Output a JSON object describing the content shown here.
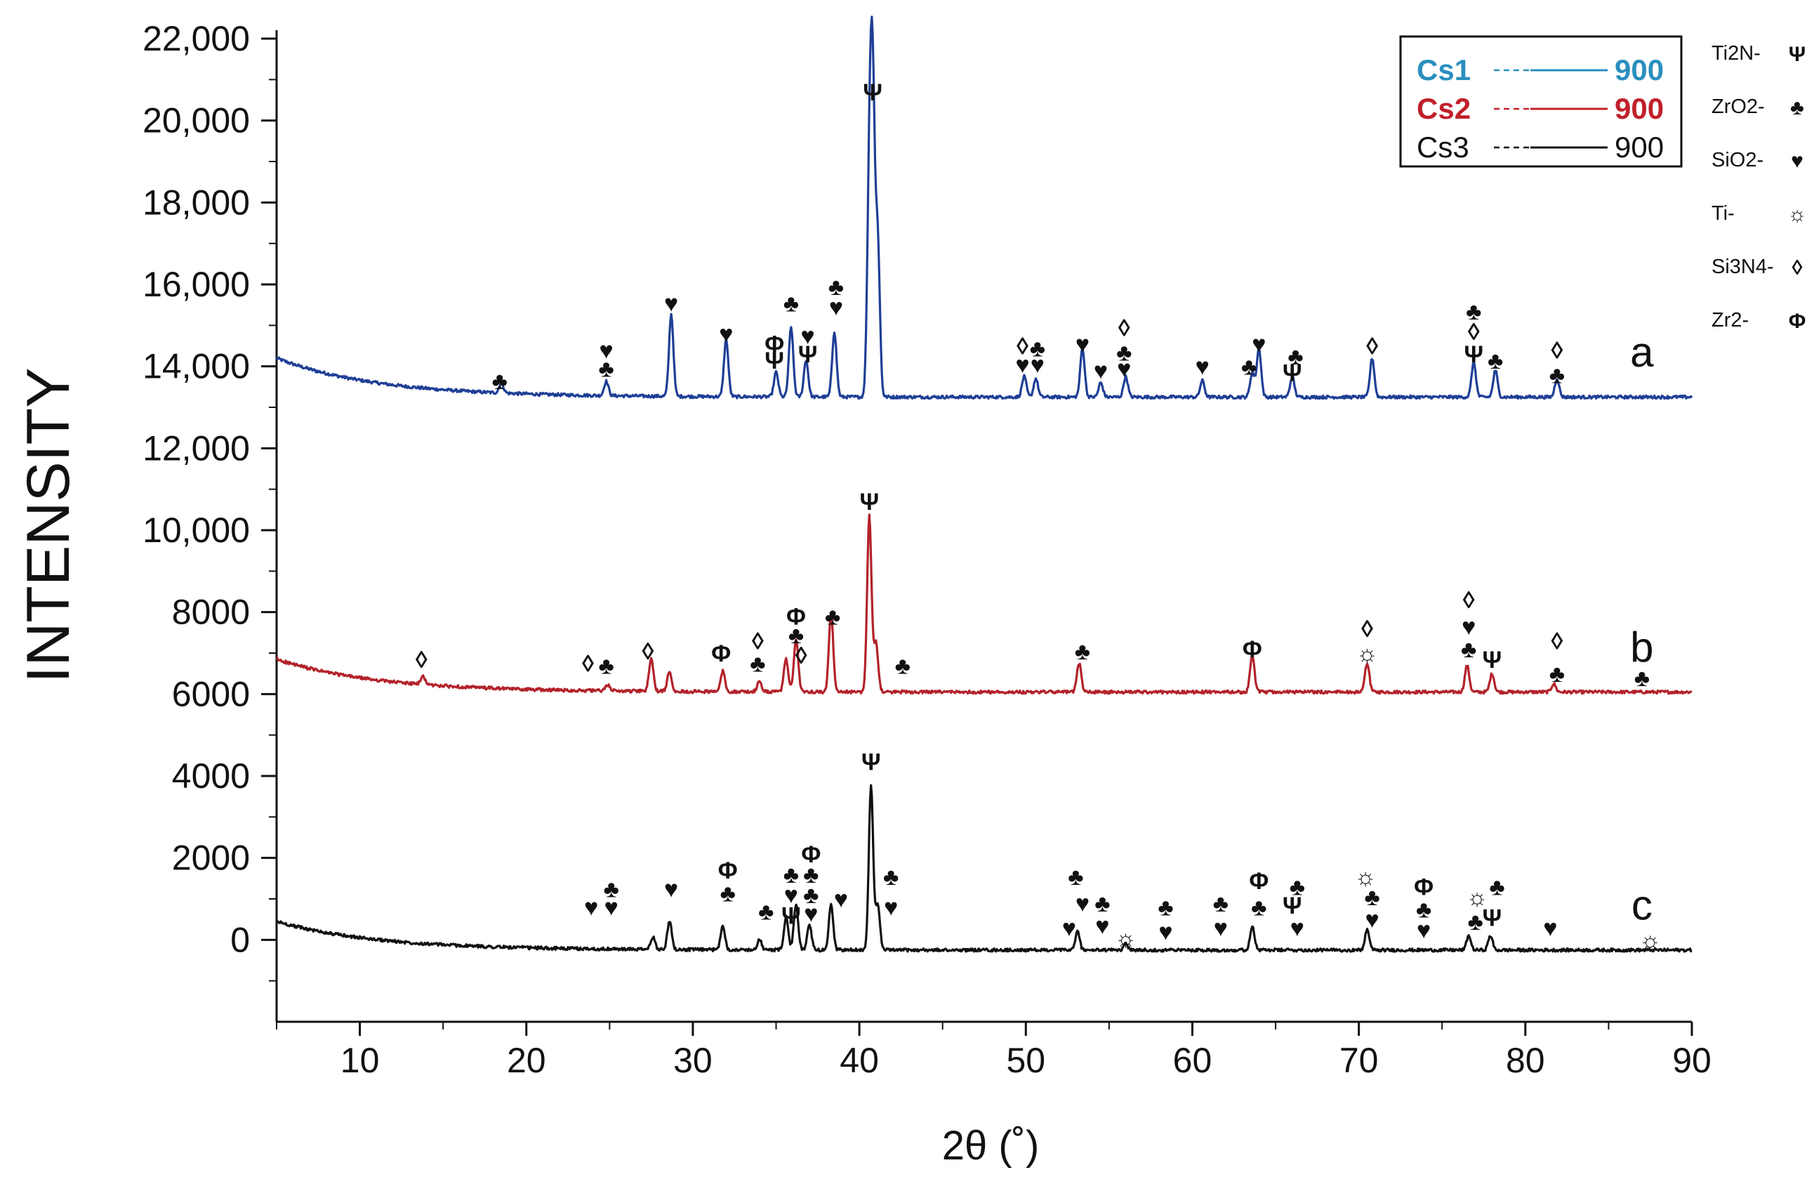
{
  "chart_data": {
    "type": "line",
    "xlabel": "2θ (˚)",
    "ylabel": "INTENSITY",
    "xlim": [
      5,
      90
    ],
    "ylim": [
      -2000,
      22000
    ],
    "x_ticks": [
      10,
      20,
      30,
      40,
      50,
      60,
      70,
      80,
      90
    ],
    "x_tick_labels": [
      "10",
      "20",
      "30",
      "40",
      "50",
      "60",
      "70",
      "80",
      "90"
    ],
    "y_ticks": [
      0,
      2000,
      4000,
      6000,
      8000,
      10000,
      12000,
      14000,
      16000,
      18000,
      20000,
      22000
    ],
    "y_tick_labels": [
      "0",
      "2000",
      "4000",
      "6000",
      "8000",
      "10,000",
      "12,000",
      "14,000",
      "16,000",
      "18,000",
      "20,000",
      "22,000"
    ],
    "grid": false,
    "legend": {
      "position": "top-right",
      "entries": [
        {
          "label": "Cs1",
          "value": "900",
          "color": "#2a8fbf"
        },
        {
          "label": "Cs2",
          "value": "900",
          "color": "#c0202a"
        },
        {
          "label": "Cs3",
          "value": "900",
          "color": "#111111"
        }
      ]
    },
    "phase_key": [
      {
        "label": "Ti2N-",
        "marker": "Ψ"
      },
      {
        "label": "ZrO2-",
        "marker": "♣"
      },
      {
        "label": "SiO2-",
        "marker": "♥"
      },
      {
        "label": "Ti-",
        "marker": "☼"
      },
      {
        "label": "Si3N4-",
        "marker": "◊"
      },
      {
        "label": "Zr2-",
        "marker": "Φ"
      }
    ],
    "series": [
      {
        "name": "a",
        "legend_label": "Cs1",
        "color": "#1f3f96",
        "baseline": 13250,
        "start": [
          5,
          14200
        ],
        "label_x": 87,
        "peaks": [
          [
            18.5,
            250
          ],
          [
            24.8,
            350
          ],
          [
            28.7,
            2000
          ],
          [
            32.0,
            1400
          ],
          [
            35.0,
            600
          ],
          [
            35.9,
            1700
          ],
          [
            36.8,
            900
          ],
          [
            38.5,
            1600
          ],
          [
            40.6,
            5000
          ],
          [
            40.8,
            7100
          ],
          [
            41.1,
            3800
          ],
          [
            49.9,
            500
          ],
          [
            50.6,
            450
          ],
          [
            53.4,
            1200
          ],
          [
            54.5,
            350
          ],
          [
            56.0,
            500
          ],
          [
            60.6,
            400
          ],
          [
            63.6,
            600
          ],
          [
            64.0,
            1200
          ],
          [
            66.0,
            500
          ],
          [
            70.8,
            950
          ],
          [
            76.9,
            850
          ],
          [
            78.2,
            650
          ],
          [
            81.9,
            450
          ]
        ],
        "markers": [
          {
            "x": 18.4,
            "y": 13650,
            "s": "♣"
          },
          {
            "x": 24.8,
            "y": 14400,
            "s": "♥"
          },
          {
            "x": 24.8,
            "y": 13950,
            "s": "♣"
          },
          {
            "x": 28.7,
            "y": 15550,
            "s": "♥"
          },
          {
            "x": 32.0,
            "y": 14800,
            "s": "♥"
          },
          {
            "x": 34.9,
            "y": 14550,
            "s": "Φ"
          },
          {
            "x": 34.9,
            "y": 14150,
            "s": "Ψ"
          },
          {
            "x": 35.9,
            "y": 15550,
            "s": "♣"
          },
          {
            "x": 36.9,
            "y": 14750,
            "s": "♥"
          },
          {
            "x": 36.9,
            "y": 14300,
            "s": "Ψ"
          },
          {
            "x": 38.6,
            "y": 15950,
            "s": "♣"
          },
          {
            "x": 38.6,
            "y": 15450,
            "s": "♥"
          },
          {
            "x": 40.8,
            "y": 20700,
            "s": "Ψ"
          },
          {
            "x": 49.8,
            "y": 14500,
            "s": "◊"
          },
          {
            "x": 49.8,
            "y": 14050,
            "s": "♥"
          },
          {
            "x": 50.7,
            "y": 14450,
            "s": "♣"
          },
          {
            "x": 50.7,
            "y": 14050,
            "s": "♥"
          },
          {
            "x": 53.4,
            "y": 14550,
            "s": "♥"
          },
          {
            "x": 54.5,
            "y": 13900,
            "s": "♥"
          },
          {
            "x": 55.9,
            "y": 14950,
            "s": "◊"
          },
          {
            "x": 55.9,
            "y": 14350,
            "s": "♣"
          },
          {
            "x": 55.9,
            "y": 13950,
            "s": "♥"
          },
          {
            "x": 60.6,
            "y": 14000,
            "s": "♥"
          },
          {
            "x": 63.4,
            "y": 14000,
            "s": "♣"
          },
          {
            "x": 64.0,
            "y": 14550,
            "s": "♥"
          },
          {
            "x": 66.2,
            "y": 14250,
            "s": "♣"
          },
          {
            "x": 66.0,
            "y": 13850,
            "s": "Ψ"
          },
          {
            "x": 70.8,
            "y": 14500,
            "s": "◊"
          },
          {
            "x": 76.9,
            "y": 15350,
            "s": "♣"
          },
          {
            "x": 76.9,
            "y": 14850,
            "s": "◊"
          },
          {
            "x": 76.9,
            "y": 14300,
            "s": "Ψ"
          },
          {
            "x": 78.2,
            "y": 14150,
            "s": "♣"
          },
          {
            "x": 81.9,
            "y": 14400,
            "s": "◊"
          },
          {
            "x": 81.9,
            "y": 13800,
            "s": "♣"
          }
        ]
      },
      {
        "name": "b",
        "legend_label": "Cs2",
        "color": "#b3222a",
        "baseline": 6050,
        "start": [
          5,
          6850
        ],
        "label_x": 87,
        "peaks": [
          [
            13.8,
            200
          ],
          [
            24.9,
            150
          ],
          [
            27.5,
            800
          ],
          [
            28.6,
            500
          ],
          [
            31.8,
            500
          ],
          [
            34.0,
            250
          ],
          [
            35.6,
            800
          ],
          [
            36.2,
            1300
          ],
          [
            38.3,
            1900
          ],
          [
            40.6,
            4300
          ],
          [
            41.0,
            1200
          ],
          [
            53.2,
            700
          ],
          [
            63.6,
            900
          ],
          [
            70.5,
            700
          ],
          [
            76.5,
            650
          ],
          [
            78.0,
            450
          ],
          [
            81.7,
            200
          ]
        ],
        "markers": [
          {
            "x": 13.7,
            "y": 6850,
            "s": "◊"
          },
          {
            "x": 23.7,
            "y": 6750,
            "s": "◊"
          },
          {
            "x": 24.8,
            "y": 6700,
            "s": "♣"
          },
          {
            "x": 27.3,
            "y": 7050,
            "s": "◊"
          },
          {
            "x": 31.7,
            "y": 7000,
            "s": "Φ"
          },
          {
            "x": 33.9,
            "y": 7300,
            "s": "◊"
          },
          {
            "x": 33.9,
            "y": 6750,
            "s": "♣"
          },
          {
            "x": 36.2,
            "y": 7900,
            "s": "Φ"
          },
          {
            "x": 36.2,
            "y": 7450,
            "s": "♣"
          },
          {
            "x": 36.5,
            "y": 6950,
            "s": "◊"
          },
          {
            "x": 38.4,
            "y": 7900,
            "s": "♣"
          },
          {
            "x": 40.6,
            "y": 10700,
            "s": "Ψ"
          },
          {
            "x": 42.6,
            "y": 6700,
            "s": "♣"
          },
          {
            "x": 53.4,
            "y": 7050,
            "s": "♣"
          },
          {
            "x": 63.6,
            "y": 7100,
            "s": "Φ"
          },
          {
            "x": 70.5,
            "y": 7600,
            "s": "◊"
          },
          {
            "x": 70.5,
            "y": 7000,
            "s": "☼"
          },
          {
            "x": 76.6,
            "y": 8300,
            "s": "◊"
          },
          {
            "x": 76.6,
            "y": 7650,
            "s": "♥"
          },
          {
            "x": 76.6,
            "y": 7100,
            "s": "♣"
          },
          {
            "x": 78.0,
            "y": 6850,
            "s": "Ψ"
          },
          {
            "x": 81.9,
            "y": 7300,
            "s": "◊"
          },
          {
            "x": 81.9,
            "y": 6500,
            "s": "♣"
          },
          {
            "x": 87.0,
            "y": 6400,
            "s": "♣"
          }
        ]
      },
      {
        "name": "c",
        "legend_label": "Cs3",
        "color": "#111111",
        "baseline": -250,
        "start": [
          5,
          450
        ],
        "label_x": 87,
        "peaks": [
          [
            27.6,
            300
          ],
          [
            28.6,
            700
          ],
          [
            31.8,
            600
          ],
          [
            34.0,
            250
          ],
          [
            35.6,
            800
          ],
          [
            36.2,
            1100
          ],
          [
            37.0,
            600
          ],
          [
            38.3,
            1100
          ],
          [
            40.7,
            4000
          ],
          [
            41.1,
            1100
          ],
          [
            53.1,
            450
          ],
          [
            56.0,
            150
          ],
          [
            63.6,
            600
          ],
          [
            70.5,
            500
          ],
          [
            76.6,
            350
          ],
          [
            77.9,
            350
          ]
        ],
        "markers": [
          {
            "x": 23.9,
            "y": 800,
            "s": "♥"
          },
          {
            "x": 25.1,
            "y": 1250,
            "s": "♣"
          },
          {
            "x": 25.1,
            "y": 800,
            "s": "♥"
          },
          {
            "x": 28.7,
            "y": 1250,
            "s": "♥"
          },
          {
            "x": 32.1,
            "y": 1700,
            "s": "Φ"
          },
          {
            "x": 32.1,
            "y": 1150,
            "s": "♣"
          },
          {
            "x": 34.4,
            "y": 700,
            "s": "♣"
          },
          {
            "x": 35.9,
            "y": 1600,
            "s": "♣"
          },
          {
            "x": 35.9,
            "y": 1100,
            "s": "♥"
          },
          {
            "x": 35.9,
            "y": 600,
            "s": "Ψ"
          },
          {
            "x": 37.1,
            "y": 2100,
            "s": "Φ"
          },
          {
            "x": 37.1,
            "y": 1600,
            "s": "♣"
          },
          {
            "x": 37.1,
            "y": 1100,
            "s": "♣"
          },
          {
            "x": 37.1,
            "y": 650,
            "s": "♥"
          },
          {
            "x": 38.9,
            "y": 1000,
            "s": "♥"
          },
          {
            "x": 40.7,
            "y": 4350,
            "s": "Ψ"
          },
          {
            "x": 41.9,
            "y": 1550,
            "s": "♣"
          },
          {
            "x": 41.9,
            "y": 800,
            "s": "♥"
          },
          {
            "x": 52.6,
            "y": 300,
            "s": "♥"
          },
          {
            "x": 53.0,
            "y": 1550,
            "s": "♣"
          },
          {
            "x": 53.4,
            "y": 900,
            "s": "♥"
          },
          {
            "x": 54.6,
            "y": 900,
            "s": "♣"
          },
          {
            "x": 54.6,
            "y": 350,
            "s": "♥"
          },
          {
            "x": 56.0,
            "y": 50,
            "s": "☼"
          },
          {
            "x": 58.4,
            "y": 800,
            "s": "♣"
          },
          {
            "x": 58.4,
            "y": 200,
            "s": "♥"
          },
          {
            "x": 61.7,
            "y": 900,
            "s": "♣"
          },
          {
            "x": 61.7,
            "y": 300,
            "s": "♥"
          },
          {
            "x": 64.0,
            "y": 1450,
            "s": "Φ"
          },
          {
            "x": 64.0,
            "y": 800,
            "s": "♣"
          },
          {
            "x": 66.3,
            "y": 1300,
            "s": "♣"
          },
          {
            "x": 66.0,
            "y": 850,
            "s": "Ψ"
          },
          {
            "x": 66.3,
            "y": 300,
            "s": "♥"
          },
          {
            "x": 70.4,
            "y": 1550,
            "s": "☼"
          },
          {
            "x": 70.8,
            "y": 1050,
            "s": "♣"
          },
          {
            "x": 70.8,
            "y": 500,
            "s": "♥"
          },
          {
            "x": 73.9,
            "y": 1300,
            "s": "Φ"
          },
          {
            "x": 73.9,
            "y": 750,
            "s": "♣"
          },
          {
            "x": 73.9,
            "y": 250,
            "s": "♥"
          },
          {
            "x": 77.1,
            "y": 1050,
            "s": "☼"
          },
          {
            "x": 77.0,
            "y": 450,
            "s": "♣"
          },
          {
            "x": 78.3,
            "y": 1300,
            "s": "♣"
          },
          {
            "x": 78.0,
            "y": 550,
            "s": "Ψ"
          },
          {
            "x": 81.5,
            "y": 300,
            "s": "♥"
          },
          {
            "x": 87.5,
            "y": 0,
            "s": "☼"
          }
        ]
      }
    ]
  }
}
